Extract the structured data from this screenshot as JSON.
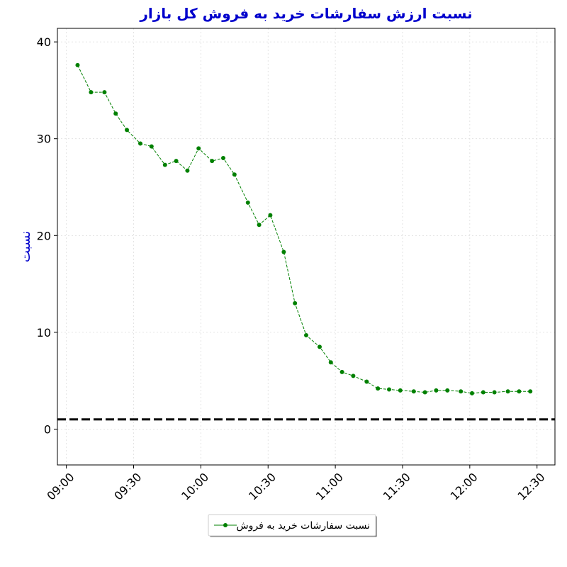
{
  "chart_data": {
    "type": "line",
    "title": "نسبت ارزش سفارشات خرید به فروش کل بازار",
    "y_label": "نسبت",
    "x": [
      "09:05",
      "09:11",
      "09:17",
      "09:22",
      "09:27",
      "09:33",
      "09:38",
      "09:44",
      "09:49",
      "09:54",
      "09:59",
      "10:05",
      "10:10",
      "10:15",
      "10:21",
      "10:26",
      "10:31",
      "10:37",
      "10:42",
      "10:47",
      "10:53",
      "10:58",
      "11:03",
      "11:08",
      "11:14",
      "11:19",
      "11:24",
      "11:29",
      "11:35",
      "11:40",
      "11:45",
      "11:50",
      "11:56",
      "12:01",
      "12:06",
      "12:11",
      "12:17",
      "12:22",
      "12:27"
    ],
    "series": [
      {
        "name": "نسبت سفارشات خرید به فروش",
        "color": "#008000",
        "values": [
          37.6,
          34.8,
          34.8,
          32.6,
          30.9,
          29.5,
          29.2,
          27.3,
          27.7,
          26.7,
          29.0,
          27.7,
          28.0,
          26.3,
          23.4,
          21.1,
          22.1,
          18.3,
          13.0,
          9.7,
          8.5,
          6.9,
          5.9,
          5.5,
          4.9,
          4.2,
          4.1,
          4.0,
          3.9,
          3.8,
          4.0,
          4.0,
          3.9,
          3.7,
          3.8,
          3.8,
          3.9,
          3.9,
          3.9
        ]
      }
    ],
    "reference_line": 1,
    "xlim": [
      "08:56",
      "12:38"
    ],
    "xticks": [
      "09:00",
      "09:30",
      "10:00",
      "10:30",
      "11:00",
      "11:30",
      "12:00",
      "12:30"
    ],
    "ylim": [
      -3.7,
      41.4
    ],
    "yticks": [
      0,
      10,
      20,
      30,
      40
    ],
    "grid": true,
    "legend": "bottom"
  }
}
